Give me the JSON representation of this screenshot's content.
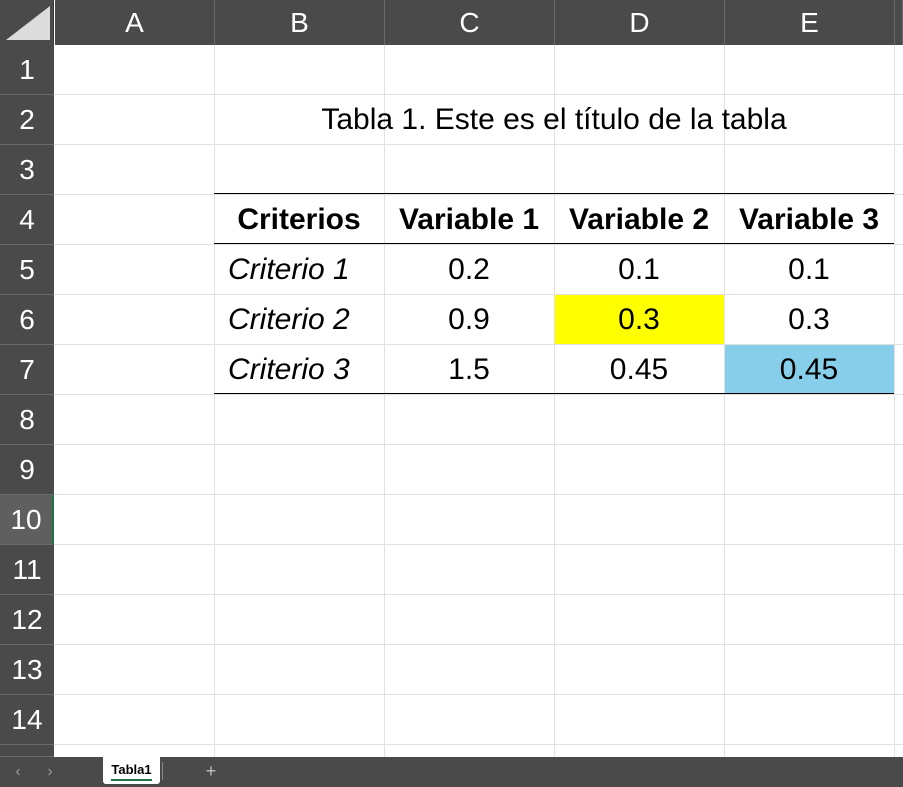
{
  "columns": [
    "A",
    "B",
    "C",
    "D",
    "E"
  ],
  "rows": [
    "1",
    "2",
    "3",
    "4",
    "5",
    "6",
    "7",
    "8",
    "9",
    "10",
    "11",
    "12",
    "13",
    "14"
  ],
  "active_row": "10",
  "table": {
    "title": "Tabla 1. Este es el título de la tabla",
    "headers": [
      "Criterios",
      "Variable 1",
      "Variable 2",
      "Variable 3"
    ],
    "rows": [
      {
        "criterio": "Criterio 1",
        "values": [
          "0.2",
          "0.1",
          "0.1"
        ]
      },
      {
        "criterio": "Criterio 2",
        "values": [
          "0.9",
          "0.3",
          "0.3"
        ]
      },
      {
        "criterio": "Criterio 3",
        "values": [
          "1.5",
          "0.45",
          "0.45"
        ]
      }
    ]
  },
  "highlights": {
    "D6": "#ffff00",
    "E7": "#87ceeb"
  },
  "sheet_tabs": {
    "active": "Tabla1",
    "add_label": "+",
    "prev_label": "‹",
    "next_label": "›"
  },
  "colors": {
    "header_bg": "#4a4a4a",
    "accent": "#217346",
    "gridline": "#e1e1e1"
  }
}
